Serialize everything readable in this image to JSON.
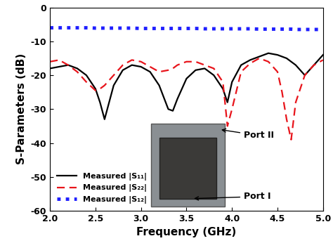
{
  "chart_data": {
    "type": "line",
    "x_label": "Frequency (GHz)",
    "y_label": "S-Parameters (dB)",
    "x": [
      2.0,
      2.1,
      2.2,
      2.3,
      2.4,
      2.5,
      2.55,
      2.6,
      2.65,
      2.7,
      2.8,
      2.9,
      3.0,
      3.1,
      3.2,
      3.3,
      3.35,
      3.4,
      3.5,
      3.6,
      3.7,
      3.8,
      3.9,
      3.95,
      4.0,
      4.1,
      4.2,
      4.3,
      4.4,
      4.5,
      4.55,
      4.6,
      4.65,
      4.7,
      4.8,
      4.9,
      5.0
    ],
    "series": [
      {
        "name": "Measured |S₁₁|",
        "color": "#000000",
        "line_style": "solid",
        "values": [
          -18,
          -17.5,
          -17,
          -18,
          -20,
          -24,
          -28,
          -33,
          -28,
          -23,
          -18.5,
          -17,
          -17.5,
          -19,
          -23,
          -30,
          -30.5,
          -27,
          -21,
          -18.5,
          -18,
          -20,
          -24,
          -28,
          -22,
          -17,
          -15.5,
          -14.5,
          -13.5,
          -14,
          -14.5,
          -15,
          -16,
          -17,
          -20,
          -17,
          -14
        ]
      },
      {
        "name": "Measured |S₂₂|",
        "color": "#e8141b",
        "line_style": "dashed",
        "values": [
          -16,
          -15.5,
          -17,
          -19,
          -22,
          -24.5,
          -24,
          -23,
          -21.5,
          -20,
          -17,
          -15.5,
          -16,
          -17.5,
          -19,
          -18.5,
          -18,
          -17,
          -16,
          -16,
          -17,
          -18,
          -22,
          -35,
          -30,
          -19,
          -16.5,
          -15,
          -16,
          -19,
          -25,
          -33,
          -39,
          -28,
          -20,
          -17,
          -15.5
        ]
      },
      {
        "name": "Measured |S₁₂|",
        "color": "#1f1fff",
        "line_style": "dotted",
        "values": [
          -6,
          -6,
          -6,
          -6,
          -6,
          -6.1,
          -6.1,
          -6.1,
          -6.1,
          -6.1,
          -6.1,
          -6.1,
          -6.2,
          -6.2,
          -6.2,
          -6.2,
          -6.2,
          -6.2,
          -6.2,
          -6.2,
          -6.3,
          -6.3,
          -6.3,
          -6.3,
          -6.3,
          -6.3,
          -6.3,
          -6.4,
          -6.4,
          -6.4,
          -6.4,
          -6.4,
          -6.4,
          -6.5,
          -6.5,
          -6.5,
          -6.5
        ]
      }
    ],
    "xlim": [
      2.0,
      5.0
    ],
    "xticks": [
      2.0,
      2.5,
      3.0,
      3.5,
      4.0,
      4.5,
      5.0
    ],
    "ylim": [
      -60,
      0
    ],
    "yticks": [
      -60,
      -50,
      -40,
      -30,
      -20,
      -10,
      0
    ],
    "legend": "lower left",
    "annotations": [
      "Port II",
      "Port I"
    ]
  }
}
